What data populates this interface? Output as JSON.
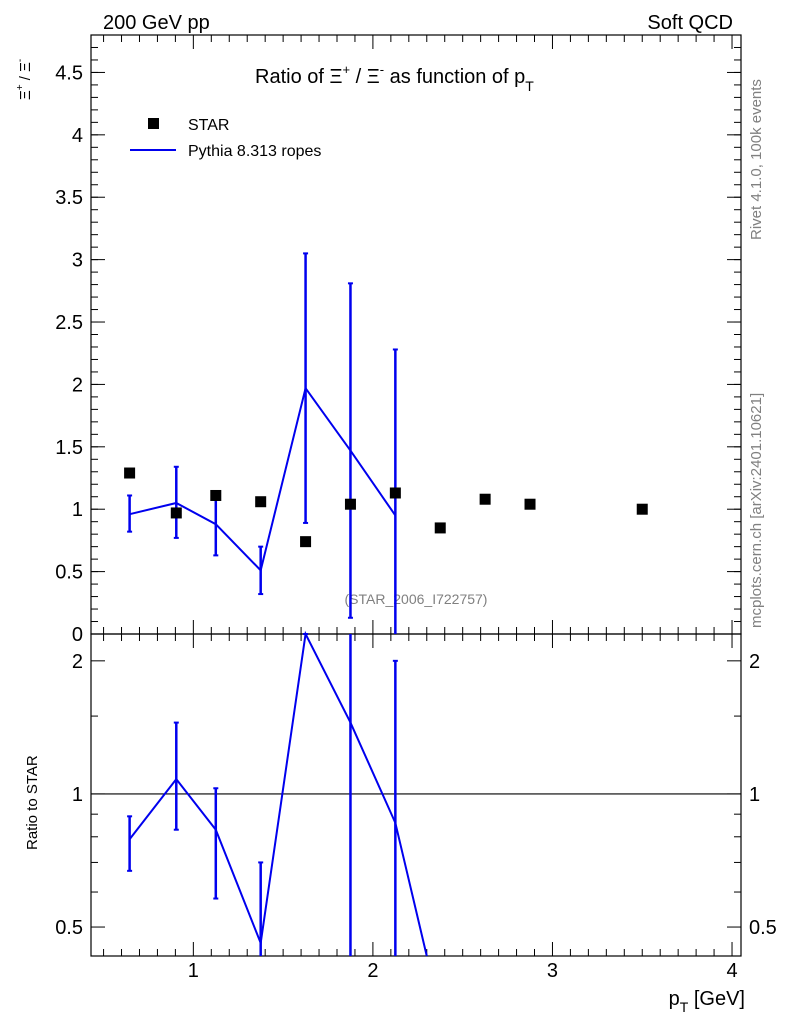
{
  "header": {
    "left": "200 GeV pp",
    "right": "Soft QCD"
  },
  "side_labels": {
    "rivet": "Rivet 4.1.0,  100k events",
    "mcplots": "mcplots.cern.ch [arXiv:2401.10621]"
  },
  "watermark": "(STAR_2006_I722757)",
  "colors": {
    "data": "#000000",
    "mc": "#0000ee",
    "frame": "#000000",
    "watermark": "#808080"
  },
  "chart_data": [
    {
      "type": "scatter",
      "title": {
        "pre": "Ratio of ",
        "xi": "Ξ",
        "plus": "+",
        "slash": " / ",
        "minus": "-",
        "mid": " as function of ",
        "p": "p",
        "sub": "T"
      },
      "ylabel": {
        "xi": "Ξ",
        "plus": "+",
        "slash": " / ",
        "minus": "-"
      },
      "xlim": [
        0.43,
        4.05
      ],
      "ylim": [
        0,
        4.8
      ],
      "xticks": [
        1,
        2,
        3,
        4
      ],
      "yticks": [
        {
          "v": 0,
          "label": "0"
        },
        {
          "v": 0.5,
          "label": "0.5"
        },
        {
          "v": 1,
          "label": "1"
        },
        {
          "v": 1.5,
          "label": "1.5"
        },
        {
          "v": 2,
          "label": "2"
        },
        {
          "v": 2.5,
          "label": "2.5"
        },
        {
          "v": 3,
          "label": "3"
        },
        {
          "v": 3.5,
          "label": "3.5"
        },
        {
          "v": 4,
          "label": "4"
        },
        {
          "v": 4.5,
          "label": "4.5"
        }
      ],
      "legend": {
        "placement": "top-left",
        "entries": [
          "STAR",
          "Pythia 8.313 ropes"
        ]
      },
      "series": [
        {
          "name": "STAR",
          "style": "markers",
          "x": [
            0.645,
            0.905,
            1.125,
            1.375,
            1.625,
            1.875,
            2.125,
            2.375,
            2.625,
            2.875,
            3.5
          ],
          "y": [
            1.29,
            0.97,
            1.11,
            1.06,
            0.74,
            1.04,
            1.13,
            0.85,
            1.08,
            1.04,
            1.0
          ]
        },
        {
          "name": "Pythia 8.313 ropes",
          "style": "line",
          "x": [
            0.645,
            0.905,
            1.125,
            1.375,
            1.625,
            1.875,
            2.125
          ],
          "y": [
            0.96,
            1.05,
            0.88,
            0.51,
            1.97,
            1.47,
            0.95
          ],
          "err_low": [
            0.82,
            0.77,
            0.63,
            0.32,
            0.89,
            0.13,
            0.0
          ],
          "err_high": [
            1.11,
            1.34,
            1.12,
            0.7,
            3.05,
            2.81,
            2.28
          ]
        }
      ]
    },
    {
      "type": "line",
      "ylabel": "Ratio to STAR",
      "xlabel": {
        "p": "p",
        "sub": "T",
        "unit": " [GeV]"
      },
      "xlim": [
        0.43,
        4.05
      ],
      "ylim": [
        0.43,
        2.3
      ],
      "log_y": true,
      "xticks": [
        {
          "v": 1,
          "label": "1"
        },
        {
          "v": 2,
          "label": "2"
        },
        {
          "v": 3,
          "label": "3"
        },
        {
          "v": 4,
          "label": "4"
        }
      ],
      "yticks": [
        {
          "v": 0.5,
          "label": "0.5"
        },
        {
          "v": 1,
          "label": "1"
        },
        {
          "v": 2,
          "label": "2"
        }
      ],
      "reference_line": 1,
      "series": [
        {
          "name": "Pythia 8.313 ropes",
          "x": [
            0.645,
            0.905,
            1.125,
            1.375,
            1.625,
            1.875,
            2.125,
            2.3
          ],
          "y": [
            0.79,
            1.08,
            0.83,
            0.46,
            2.4,
            1.45,
            0.86,
            0.43
          ],
          "err_low": [
            0.67,
            0.83,
            0.58,
            0.3,
            2.4,
            0.3,
            0.3,
            null
          ],
          "err_high": [
            0.89,
            1.45,
            1.03,
            0.7,
            2.4,
            2.3,
            2.0,
            null
          ]
        }
      ]
    }
  ]
}
